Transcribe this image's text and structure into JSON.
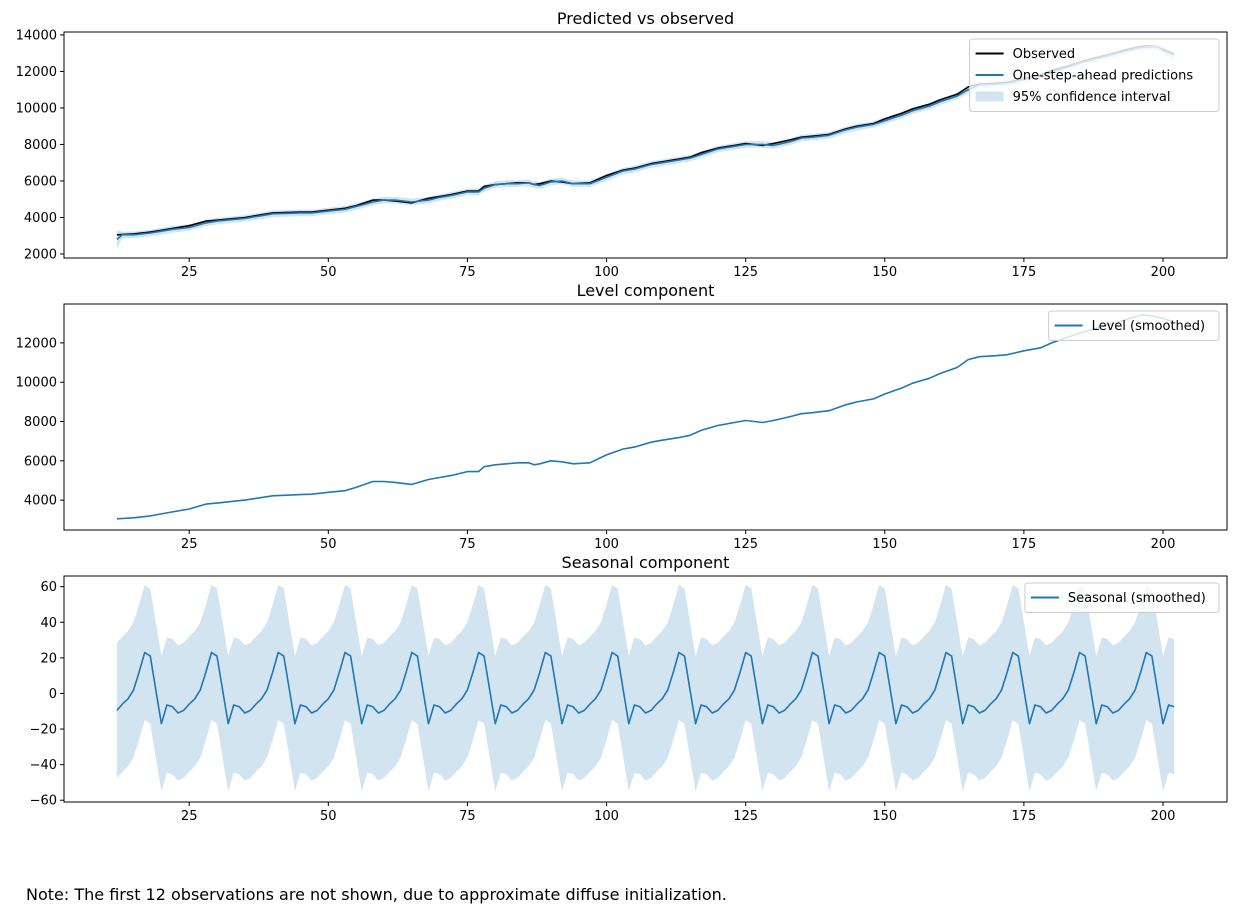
{
  "chart_data": [
    {
      "type": "line",
      "title": "Predicted vs observed",
      "xlabel": "",
      "ylabel": "",
      "xlim": [
        2.5,
        211.5
      ],
      "ylim": [
        1780,
        14160
      ],
      "xticks": [
        25,
        50,
        75,
        100,
        125,
        150,
        175,
        200
      ],
      "yticks": [
        2000,
        4000,
        6000,
        8000,
        10000,
        12000,
        14000
      ],
      "grid": false,
      "legend": {
        "position": "top-right",
        "entries": [
          "Observed",
          "One-step-ahead predictions",
          "95% confidence interval"
        ]
      },
      "series": [
        {
          "name": "Observed",
          "color": "#000000",
          "x": [
            12,
            15,
            18,
            20,
            22,
            25,
            28,
            30,
            35,
            40,
            45,
            47,
            50,
            53,
            55,
            58,
            60,
            62,
            65,
            68,
            70,
            72,
            75,
            77,
            78,
            80,
            82,
            84,
            86,
            87,
            88,
            90,
            92,
            94,
            97,
            100,
            103,
            105,
            108,
            110,
            113,
            115,
            117,
            120,
            123,
            125,
            128,
            130,
            133,
            135,
            137,
            140,
            143,
            145,
            148,
            150,
            153,
            155,
            158,
            160,
            163,
            165,
            167,
            170,
            172,
            175,
            178,
            180,
            183,
            185,
            188,
            190,
            193,
            195,
            197,
            199,
            200,
            202
          ],
          "values": [
            3050,
            3100,
            3200,
            3300,
            3400,
            3550,
            3800,
            3850,
            4000,
            4250,
            4300,
            4300,
            4400,
            4500,
            4650,
            4950,
            4950,
            4900,
            4800,
            5050,
            5150,
            5250,
            5450,
            5450,
            5700,
            5800,
            5850,
            5900,
            5900,
            5800,
            5850,
            6000,
            5950,
            5850,
            5900,
            6300,
            6600,
            6700,
            6950,
            7050,
            7200,
            7300,
            7550,
            7800,
            7950,
            8050,
            7950,
            8050,
            8250,
            8400,
            8450,
            8550,
            8850,
            9000,
            9150,
            9400,
            9700,
            9950,
            10200,
            10450,
            10750,
            11150,
            11300,
            11350,
            11400,
            11600,
            11800,
            12050,
            12300,
            12500,
            12750,
            12900,
            13150,
            13300,
            13400,
            13350,
            13200,
            12950
          ]
        },
        {
          "name": "One-step-ahead predictions",
          "color": "#1f77b4",
          "x": [
            12,
            13,
            15,
            18,
            20,
            22,
            25,
            28,
            30,
            35,
            40,
            45,
            47,
            50,
            53,
            55,
            58,
            60,
            62,
            65,
            68,
            70,
            72,
            75,
            77,
            78,
            80,
            82,
            84,
            86,
            87,
            88,
            90,
            92,
            94,
            97,
            100,
            103,
            105,
            108,
            110,
            113,
            115,
            117,
            120,
            123,
            125,
            128,
            130,
            133,
            135,
            137,
            140,
            143,
            145,
            148,
            150,
            153,
            155,
            158,
            160,
            163,
            165,
            167,
            170,
            172,
            175,
            178,
            180,
            183,
            185,
            188,
            190,
            193,
            195,
            197,
            199,
            200,
            202
          ],
          "values": [
            2800,
            3050,
            3050,
            3150,
            3250,
            3350,
            3450,
            3700,
            3800,
            3950,
            4200,
            4250,
            4250,
            4350,
            4450,
            4600,
            4850,
            4950,
            4950,
            4850,
            4950,
            5100,
            5200,
            5400,
            5400,
            5600,
            5800,
            5850,
            5850,
            5900,
            5800,
            5750,
            5950,
            6000,
            5850,
            5850,
            6200,
            6550,
            6650,
            6900,
            7000,
            7150,
            7250,
            7450,
            7750,
            7900,
            8000,
            8000,
            7950,
            8150,
            8350,
            8400,
            8500,
            8800,
            8950,
            9100,
            9300,
            9600,
            9850,
            10100,
            10350,
            10650,
            11000,
            11250,
            11300,
            11350,
            11550,
            11750,
            11950,
            12250,
            12450,
            12700,
            12850,
            13100,
            13250,
            13350,
            13350,
            13150,
            12900
          ]
        }
      ],
      "confidence_interval": {
        "name": "95% confidence interval",
        "color": "#1f77b4",
        "alpha": 0.2,
        "half_width": 180,
        "half_width_start": 500
      }
    },
    {
      "type": "line",
      "title": "Level component",
      "xlabel": "",
      "ylabel": "",
      "xlim": [
        2.5,
        211.5
      ],
      "ylim": [
        2480,
        13980
      ],
      "xticks": [
        25,
        50,
        75,
        100,
        125,
        150,
        175,
        200
      ],
      "yticks": [
        4000,
        6000,
        8000,
        10000,
        12000
      ],
      "grid": false,
      "legend": {
        "position": "top-right",
        "entries": [
          "Level (smoothed)"
        ]
      },
      "series": [
        {
          "name": "Level (smoothed)",
          "color": "#1f77b4",
          "x": [
            12,
            15,
            18,
            20,
            22,
            25,
            28,
            30,
            35,
            40,
            45,
            47,
            50,
            53,
            55,
            58,
            60,
            62,
            65,
            68,
            70,
            72,
            75,
            77,
            78,
            80,
            82,
            84,
            86,
            87,
            88,
            90,
            92,
            94,
            97,
            100,
            103,
            105,
            108,
            110,
            113,
            115,
            117,
            120,
            123,
            125,
            128,
            130,
            133,
            135,
            137,
            140,
            143,
            145,
            148,
            150,
            153,
            155,
            158,
            160,
            163,
            165,
            167,
            170,
            172,
            175,
            178,
            180,
            183,
            185,
            188,
            190,
            193,
            196,
            198,
            200,
            202
          ],
          "values": [
            3050,
            3100,
            3200,
            3300,
            3400,
            3550,
            3800,
            3850,
            4000,
            4220,
            4280,
            4300,
            4400,
            4480,
            4650,
            4950,
            4950,
            4900,
            4800,
            5050,
            5150,
            5250,
            5450,
            5450,
            5700,
            5800,
            5850,
            5900,
            5900,
            5800,
            5850,
            6000,
            5950,
            5850,
            5900,
            6300,
            6600,
            6700,
            6950,
            7050,
            7180,
            7300,
            7550,
            7800,
            7950,
            8050,
            7950,
            8050,
            8250,
            8400,
            8450,
            8550,
            8850,
            9000,
            9150,
            9400,
            9700,
            9950,
            10200,
            10450,
            10750,
            11150,
            11300,
            11350,
            11400,
            11600,
            11750,
            12000,
            12300,
            12500,
            12750,
            12900,
            13150,
            13420,
            13380,
            13250,
            13050
          ]
        }
      ]
    },
    {
      "type": "line",
      "title": "Seasonal component",
      "xlabel": "",
      "ylabel": "",
      "xlim": [
        2.5,
        211.5
      ],
      "ylim": [
        -61,
        66
      ],
      "xticks": [
        25,
        50,
        75,
        100,
        125,
        150,
        175,
        200
      ],
      "yticks": [
        -60,
        -40,
        -20,
        0,
        20,
        40,
        60
      ],
      "grid": false,
      "legend": {
        "position": "top-right",
        "entries": [
          "Seasonal (smoothed)"
        ]
      },
      "series": [
        {
          "name": "Seasonal (smoothed)",
          "color": "#1f77b4",
          "x_start": 12,
          "x_end": 202,
          "period": 12,
          "pattern": [
            -9.5,
            -6,
            -3,
            2,
            12,
            23,
            21,
            2,
            -17,
            -6.5,
            -7.5,
            -11
          ]
        }
      ],
      "confidence_interval": {
        "color": "#1f77b4",
        "alpha": 0.2,
        "half_width": 38
      }
    }
  ],
  "footnote": "Note: The first 12 observations are not shown, due to approximate diffuse initialization."
}
